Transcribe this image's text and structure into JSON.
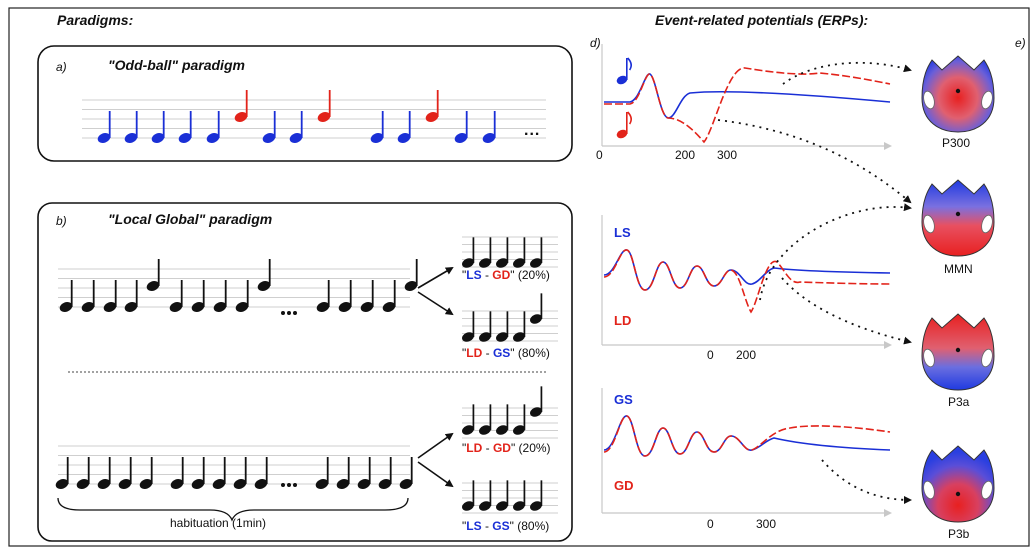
{
  "headers": {
    "paradigms": "Paradigms:",
    "erps": "Event-related potentials (ERPs):"
  },
  "panel_labels": {
    "a": "a)",
    "b": "b)",
    "d": "d)",
    "e": "e)"
  },
  "panel_a": {
    "title": "\"Odd-ball\" paradigm",
    "ellipsis": "..."
  },
  "panel_b": {
    "title": "\"Local Global\" paradigm",
    "ellipsis": "...",
    "brace_label": "habituation (1min)",
    "outcomes": [
      {
        "q": "\"",
        "local": "LS",
        "sep": " - ",
        "global": "GD",
        "q2": "\"",
        "pct": " (20%)",
        "local_color": "#1a2fd6",
        "global_color": "#e2231a"
      },
      {
        "q": "\"",
        "local": "LD",
        "sep": " - ",
        "global": "GS",
        "q2": "\"",
        "pct": " (80%)",
        "local_color": "#e2231a",
        "global_color": "#1a2fd6"
      },
      {
        "q": "\"",
        "local": "LD",
        "sep": " - ",
        "global": "GD",
        "q2": "\"",
        "pct": " (20%)",
        "local_color": "#e2231a",
        "global_color": "#e2231a"
      },
      {
        "q": "\"",
        "local": "LS",
        "sep": " - ",
        "global": "GS",
        "q2": "\"",
        "pct": " (80%)",
        "local_color": "#1a2fd6",
        "global_color": "#1a2fd6"
      }
    ]
  },
  "erp_top": {
    "ticks": [
      "0",
      "200",
      "300"
    ]
  },
  "erp_mid": {
    "standard_tag": "LS",
    "deviant_tag": "LD",
    "ticks": [
      "0",
      "200"
    ]
  },
  "erp_bot": {
    "standard_tag": "GS",
    "deviant_tag": "GD",
    "ticks": [
      "0",
      "300"
    ]
  },
  "topomaps": [
    "P300",
    "MMN",
    "P3a",
    "P3b"
  ],
  "colors": {
    "blue": "#1a2fd6",
    "red": "#e2231a",
    "black": "#111111",
    "gray_axis": "#c8c8c8"
  }
}
